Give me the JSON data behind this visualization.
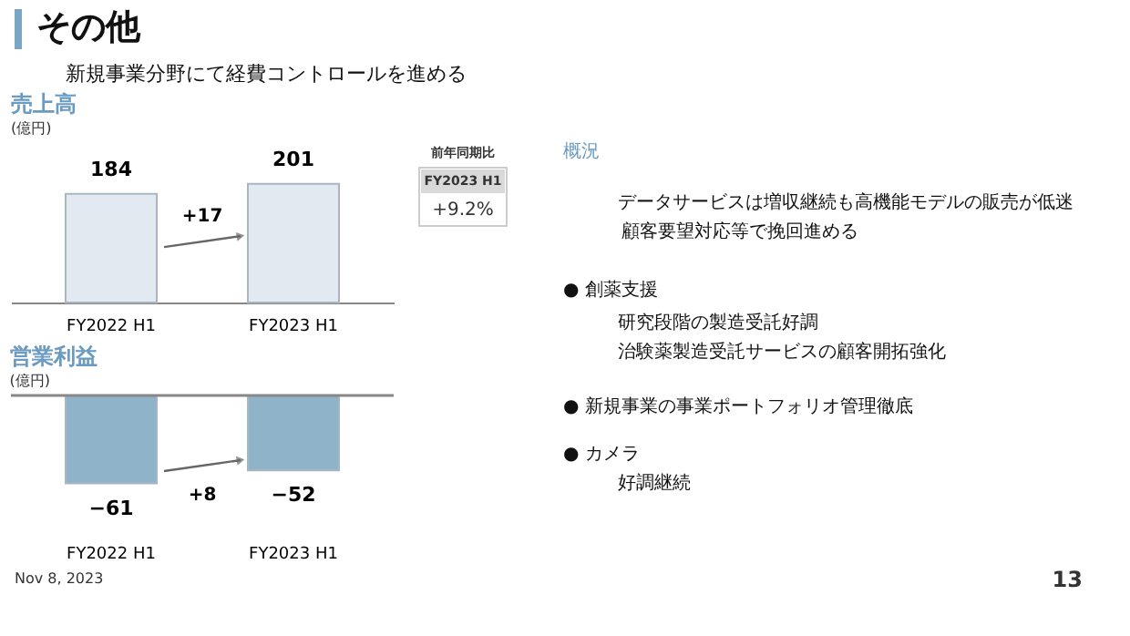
{
  "chart_data": [
    {
      "type": "bar",
      "title": "売上高",
      "subtitle": "(億円)",
      "categories": [
        "FY2022 H1",
        "FY2023 H1"
      ],
      "values": [
        184,
        201
      ],
      "color": "#e2e9f1",
      "data_labels": true,
      "annotations": [
        "+17",
        "前年同期比",
        "FY2023 H1",
        "+9.2%"
      ]
    },
    {
      "type": "bar",
      "title": "営業利益",
      "subtitle": "(億円)",
      "categories": [
        "FY2022 H1",
        "FY2023 H1"
      ],
      "values": [
        -61,
        -52
      ],
      "color": "#8fb3c9",
      "data_labels": true,
      "annotations": [
        "+8"
      ]
    },
    {
      "type": "other",
      "title": "その他",
      "subtitle": "新規事業分野にて経費コントロールを進める",
      "annotations": [
        "概況",
        "データサービスは増収継続も高機能モデルの販売が低迷",
        "顧客要望対応等で挽回進める",
        "● 創薬支援",
        "研究段階の製造受託好調",
        "治験薬製造受託サービスの顧客開拓強化",
        "● 新規事業の事業ポートフォリオ管理徹底",
        "● カメラ",
        "好調継続",
        "Nov 8, 2023",
        "13"
      ]
    }
  ]
}
